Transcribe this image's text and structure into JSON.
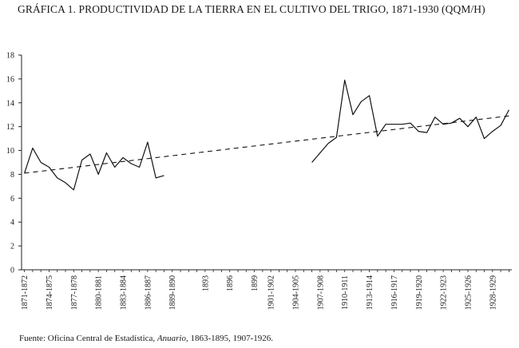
{
  "title": "GRÁFICA 1. PRODUCTIVIDAD DE LA TIERRA EN EL CULTIVO DEL TRIGO, 1871-1930 (QQM/H)",
  "source": {
    "prefix": "Fuente: Oficina Central de Estadística, ",
    "italic": "Anuario,",
    "suffix": " 1863-1895, 1907-1926."
  },
  "chart_data": {
    "type": "line",
    "title": "GRÁFICA 1. PRODUCTIVIDAD DE LA TIERRA EN EL CULTIVO DEL TRIGO, 1871-1930 (QQM/H)",
    "xlabel": "",
    "ylabel": "",
    "xlim": [
      1871,
      1930
    ],
    "ylim": [
      0,
      18
    ],
    "yticks": [
      0,
      2,
      4,
      6,
      8,
      10,
      12,
      14,
      16,
      18
    ],
    "xtick_labels": [
      {
        "x": 1871,
        "label": "1871-1872"
      },
      {
        "x": 1874,
        "label": "1874-1875"
      },
      {
        "x": 1877,
        "label": "1877-1878"
      },
      {
        "x": 1880,
        "label": "1880-1881"
      },
      {
        "x": 1883,
        "label": "1883-1884"
      },
      {
        "x": 1886,
        "label": "1886-1887"
      },
      {
        "x": 1889,
        "label": "1889-1890"
      },
      {
        "x": 1893,
        "label": "1893"
      },
      {
        "x": 1896,
        "label": "1896"
      },
      {
        "x": 1899,
        "label": "1899"
      },
      {
        "x": 1901,
        "label": "1901-1902"
      },
      {
        "x": 1904,
        "label": "1904-1905"
      },
      {
        "x": 1907,
        "label": "1907-1908"
      },
      {
        "x": 1910,
        "label": "1910-1911"
      },
      {
        "x": 1913,
        "label": "1913-1914"
      },
      {
        "x": 1916,
        "label": "1916-1917"
      },
      {
        "x": 1919,
        "label": "1919-1920"
      },
      {
        "x": 1922,
        "label": "1922-1923"
      },
      {
        "x": 1925,
        "label": "1925-1926"
      },
      {
        "x": 1928,
        "label": "1928-1929"
      }
    ],
    "grid": false,
    "series": [
      {
        "style": "solid",
        "segments": [
          [
            [
              1871,
              8.1
            ],
            [
              1872,
              10.2
            ],
            [
              1873,
              9.0
            ],
            [
              1874,
              8.6
            ],
            [
              1875,
              7.7
            ],
            [
              1876,
              7.3
            ],
            [
              1877,
              6.7
            ],
            [
              1878,
              9.2
            ],
            [
              1879,
              9.7
            ],
            [
              1880,
              8.0
            ],
            [
              1881,
              9.8
            ],
            [
              1882,
              8.6
            ],
            [
              1883,
              9.4
            ],
            [
              1884,
              8.9
            ],
            [
              1885,
              8.6
            ],
            [
              1886,
              10.7
            ],
            [
              1887,
              7.7
            ],
            [
              1888,
              7.9
            ]
          ],
          [
            [
              1906,
              9.0
            ],
            [
              1907,
              9.8
            ],
            [
              1908,
              10.6
            ],
            [
              1909,
              11.1
            ],
            [
              1910,
              15.9
            ],
            [
              1911,
              13.0
            ],
            [
              1912,
              14.1
            ],
            [
              1913,
              14.6
            ],
            [
              1914,
              11.2
            ],
            [
              1915,
              12.2
            ],
            [
              1916,
              12.2
            ],
            [
              1917,
              12.2
            ],
            [
              1918,
              12.3
            ],
            [
              1919,
              11.6
            ],
            [
              1920,
              11.5
            ],
            [
              1921,
              12.8
            ],
            [
              1922,
              12.2
            ],
            [
              1923,
              12.3
            ],
            [
              1924,
              12.7
            ],
            [
              1925,
              12.0
            ],
            [
              1926,
              12.8
            ],
            [
              1927,
              11.0
            ],
            [
              1928,
              11.6
            ],
            [
              1929,
              12.1
            ],
            [
              1930,
              13.4
            ]
          ]
        ]
      },
      {
        "style": "dashed",
        "note_role": "trend",
        "points": [
          [
            1871,
            8.1
          ],
          [
            1930,
            12.9
          ]
        ]
      }
    ]
  }
}
